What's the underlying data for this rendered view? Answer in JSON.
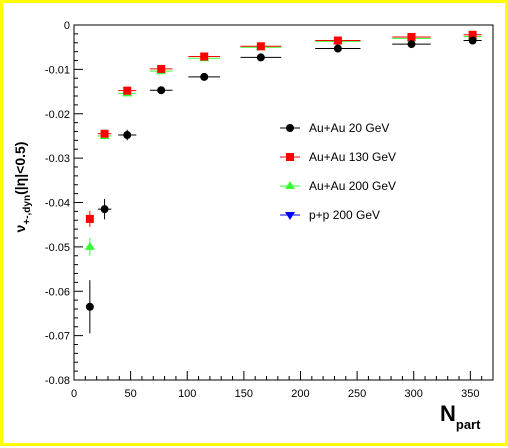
{
  "chart_data": {
    "type": "scatter",
    "title": "",
    "xlabel": "N",
    "xlabel_sub": "part",
    "ylabel_main": "ν",
    "ylabel_sub": "+-,dyn",
    "ylabel_tail": "(|η|<0.5)",
    "xlim": [
      0,
      370
    ],
    "ylim": [
      -0.08,
      0
    ],
    "x_ticks": [
      0,
      50,
      100,
      150,
      200,
      250,
      300,
      350
    ],
    "x_tick_labels": [
      "0",
      "50",
      "100",
      "150",
      "200",
      "250",
      "300",
      "350"
    ],
    "y_ticks": [
      0,
      -0.01,
      -0.02,
      -0.03,
      -0.04,
      -0.05,
      -0.06,
      -0.07,
      -0.08
    ],
    "y_tick_labels": [
      "0",
      "-0.01",
      "-0.02",
      "-0.03",
      "-0.04",
      "-0.05",
      "-0.06",
      "-0.07",
      "-0.08"
    ],
    "grid": false,
    "legend_position": "right-middle",
    "series": [
      {
        "name": "Au+Au 20 GeV",
        "color": "#000000",
        "marker": "circle",
        "points": [
          {
            "x": 14,
            "y": -0.0635,
            "xerr": 3,
            "yerr": 0.006
          },
          {
            "x": 27,
            "y": -0.0415,
            "xerr": 6,
            "yerr": 0.0023
          },
          {
            "x": 47,
            "y": -0.0248,
            "xerr": 8,
            "yerr": 0.0012
          },
          {
            "x": 77,
            "y": -0.0147,
            "xerr": 10,
            "yerr": 0.0005
          },
          {
            "x": 115,
            "y": -0.0117,
            "xerr": 14,
            "yerr": 0.0004
          },
          {
            "x": 165,
            "y": -0.0073,
            "xerr": 18,
            "yerr": 0.0003
          },
          {
            "x": 233,
            "y": -0.0053,
            "xerr": 20,
            "yerr": 0.0003
          },
          {
            "x": 298,
            "y": -0.0043,
            "xerr": 17,
            "yerr": 0.0003
          },
          {
            "x": 352,
            "y": -0.0035,
            "xerr": 8,
            "yerr": 0.0002
          }
        ]
      },
      {
        "name": "Au+Au 130 GeV",
        "color": "#ff0000",
        "marker": "square",
        "points": [
          {
            "x": 14,
            "y": -0.0437,
            "xerr": 3,
            "yerr": 0.0018
          },
          {
            "x": 27,
            "y": -0.0245,
            "xerr": 6,
            "yerr": 0.0008
          },
          {
            "x": 47,
            "y": -0.0148,
            "xerr": 8,
            "yerr": 0.0005
          },
          {
            "x": 77,
            "y": -0.0099,
            "xerr": 10,
            "yerr": 0.0003
          },
          {
            "x": 115,
            "y": -0.0071,
            "xerr": 14,
            "yerr": 0.0003
          },
          {
            "x": 165,
            "y": -0.0048,
            "xerr": 18,
            "yerr": 0.0002
          },
          {
            "x": 233,
            "y": -0.0035,
            "xerr": 20,
            "yerr": 0.0002
          },
          {
            "x": 298,
            "y": -0.0027,
            "xerr": 17,
            "yerr": 0.0002
          },
          {
            "x": 352,
            "y": -0.0022,
            "xerr": 8,
            "yerr": 0.0002
          }
        ]
      },
      {
        "name": "Au+Au 200 GeV",
        "color": "#33ff33",
        "marker": "triangle-up",
        "points": [
          {
            "x": 14,
            "y": -0.05,
            "xerr": 3,
            "yerr": 0.002
          },
          {
            "x": 27,
            "y": -0.025,
            "xerr": 6,
            "yerr": 0.0008
          },
          {
            "x": 47,
            "y": -0.0154,
            "xerr": 8,
            "yerr": 0.0005
          },
          {
            "x": 77,
            "y": -0.0104,
            "xerr": 10,
            "yerr": 0.0003
          },
          {
            "x": 115,
            "y": -0.0075,
            "xerr": 14,
            "yerr": 0.0003
          },
          {
            "x": 165,
            "y": -0.005,
            "xerr": 18,
            "yerr": 0.0002
          },
          {
            "x": 233,
            "y": -0.0037,
            "xerr": 20,
            "yerr": 0.0002
          },
          {
            "x": 298,
            "y": -0.003,
            "xerr": 17,
            "yerr": 0.0002
          },
          {
            "x": 352,
            "y": -0.0026,
            "xerr": 8,
            "yerr": 0.0002
          }
        ]
      },
      {
        "name": "p+p 200 GeV",
        "color": "#0000ff",
        "marker": "triangle-down",
        "points": []
      }
    ]
  }
}
